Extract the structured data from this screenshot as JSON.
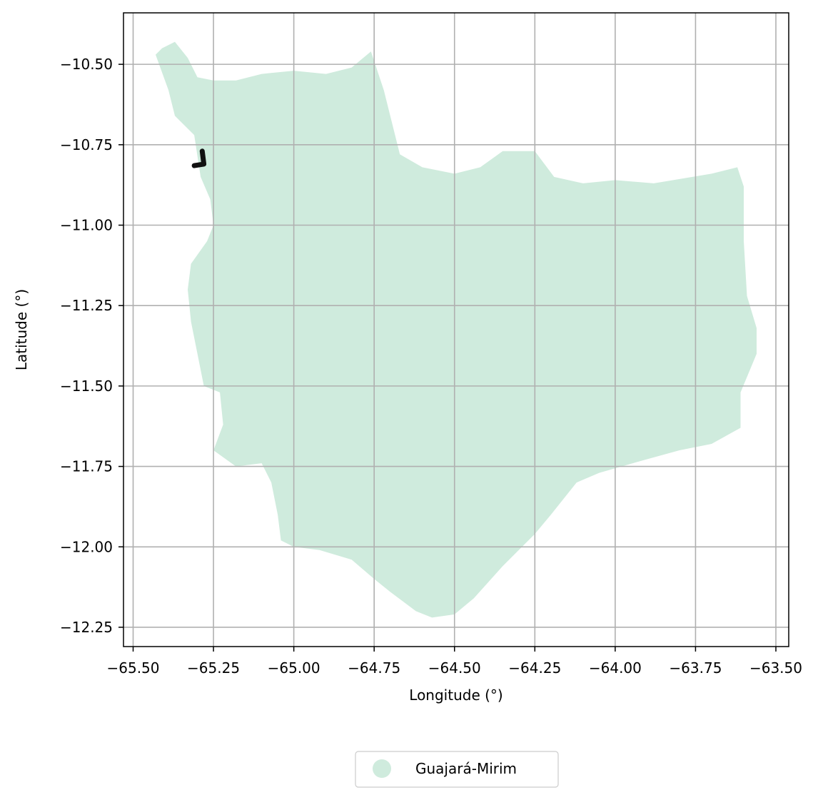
{
  "chart_data": {
    "type": "map",
    "xlabel": "Longitude (°)",
    "ylabel": "Latitude (°)",
    "xlim": [
      -65.53,
      -63.46
    ],
    "ylim": [
      -12.31,
      -10.34
    ],
    "x_ticks": [
      -65.5,
      -65.25,
      -65.0,
      -64.75,
      -64.5,
      -64.25,
      -64.0,
      -63.75,
      -63.5
    ],
    "x_tick_labels": [
      "−65.50",
      "−65.25",
      "−65.00",
      "−64.75",
      "−64.50",
      "−64.25",
      "−64.00",
      "−63.75",
      "−63.50"
    ],
    "y_ticks": [
      -10.5,
      -10.75,
      -11.0,
      -11.25,
      -11.5,
      -11.75,
      -12.0,
      -12.25
    ],
    "y_tick_labels": [
      "−10.50",
      "−10.75",
      "−11.00",
      "−11.25",
      "−11.50",
      "−11.75",
      "−12.00",
      "−12.25"
    ],
    "grid": true,
    "legend_position": "bottom-center",
    "region": {
      "name": "Guajará-Mirim",
      "color": "#cfebdd",
      "boundary": [
        [
          -65.41,
          -10.45
        ],
        [
          -65.37,
          -10.43
        ],
        [
          -65.33,
          -10.48
        ],
        [
          -65.3,
          -10.54
        ],
        [
          -65.25,
          -10.55
        ],
        [
          -65.18,
          -10.55
        ],
        [
          -65.1,
          -10.53
        ],
        [
          -65.0,
          -10.52
        ],
        [
          -64.9,
          -10.53
        ],
        [
          -64.82,
          -10.51
        ],
        [
          -64.76,
          -10.46
        ],
        [
          -64.72,
          -10.58
        ],
        [
          -64.67,
          -10.78
        ],
        [
          -64.6,
          -10.82
        ],
        [
          -64.5,
          -10.84
        ],
        [
          -64.42,
          -10.82
        ],
        [
          -64.35,
          -10.77
        ],
        [
          -64.25,
          -10.77
        ],
        [
          -64.19,
          -10.85
        ],
        [
          -64.1,
          -10.87
        ],
        [
          -64.0,
          -10.86
        ],
        [
          -63.88,
          -10.87
        ],
        [
          -63.7,
          -10.84
        ],
        [
          -63.62,
          -10.82
        ],
        [
          -63.6,
          -10.88
        ],
        [
          -63.6,
          -11.05
        ],
        [
          -63.59,
          -11.22
        ],
        [
          -63.56,
          -11.32
        ],
        [
          -63.56,
          -11.4
        ],
        [
          -63.61,
          -11.52
        ],
        [
          -63.61,
          -11.63
        ],
        [
          -63.7,
          -11.68
        ],
        [
          -63.8,
          -11.7
        ],
        [
          -63.91,
          -11.73
        ],
        [
          -64.05,
          -11.77
        ],
        [
          -64.12,
          -11.8
        ],
        [
          -64.2,
          -11.9
        ],
        [
          -64.25,
          -11.96
        ],
        [
          -64.35,
          -12.06
        ],
        [
          -64.44,
          -12.16
        ],
        [
          -64.5,
          -12.21
        ],
        [
          -64.57,
          -12.22
        ],
        [
          -64.62,
          -12.2
        ],
        [
          -64.7,
          -12.14
        ],
        [
          -64.75,
          -12.1
        ],
        [
          -64.82,
          -12.04
        ],
        [
          -64.92,
          -12.01
        ],
        [
          -65.0,
          -12.0
        ],
        [
          -65.04,
          -11.98
        ],
        [
          -65.05,
          -11.9
        ],
        [
          -65.07,
          -11.8
        ],
        [
          -65.1,
          -11.74
        ],
        [
          -65.18,
          -11.75
        ],
        [
          -65.25,
          -11.7
        ],
        [
          -65.22,
          -11.62
        ],
        [
          -65.23,
          -11.52
        ],
        [
          -65.28,
          -11.5
        ],
        [
          -65.3,
          -11.4
        ],
        [
          -65.32,
          -11.3
        ],
        [
          -65.33,
          -11.2
        ],
        [
          -65.32,
          -11.12
        ],
        [
          -65.27,
          -11.05
        ],
        [
          -65.25,
          -11.0
        ],
        [
          -65.26,
          -10.92
        ],
        [
          -65.29,
          -10.85
        ],
        [
          -65.31,
          -10.72
        ],
        [
          -65.37,
          -10.66
        ],
        [
          -65.39,
          -10.58
        ],
        [
          -65.43,
          -10.47
        ]
      ],
      "marker_path": [
        [
          -65.285,
          -10.77
        ],
        [
          -65.28,
          -10.81
        ],
        [
          -65.31,
          -10.815
        ]
      ]
    },
    "legend": [
      {
        "label": "Guajará-Mirim",
        "color": "#cfebdd"
      }
    ]
  }
}
